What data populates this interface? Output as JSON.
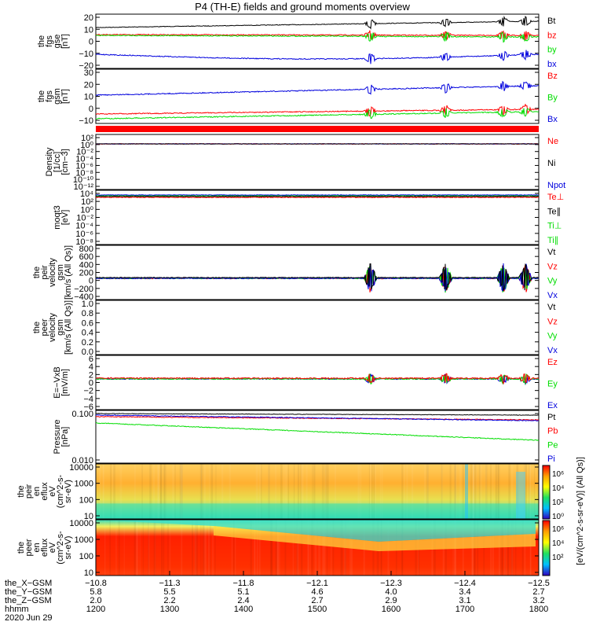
{
  "title": "P4 (TH-E) fields and ground moments overview",
  "colors": {
    "black": "#000000",
    "red": "#ff0000",
    "green": "#00dd00",
    "blue": "#0000dd"
  },
  "panels": [
    {
      "id": "fgs-gse",
      "ylabel": [
        "the",
        "fgs",
        "gse",
        "[nT]"
      ],
      "ticks": [
        "20",
        "10",
        "0",
        "−10",
        "−20"
      ],
      "legend": [
        {
          "text": "Bt",
          "color": "black"
        },
        {
          "text": "bz",
          "color": "red"
        },
        {
          "text": "by",
          "color": "green"
        },
        {
          "text": "bx",
          "color": "blue"
        }
      ]
    },
    {
      "id": "fgs-gsm",
      "ylabel": [
        "the",
        "fgs",
        "gsm",
        "[nT]"
      ],
      "ticks": [
        "30",
        "20",
        "10",
        "0",
        "−10"
      ],
      "legend": [
        {
          "text": "Bz",
          "color": "red"
        },
        {
          "text": "By",
          "color": "green"
        },
        {
          "text": "Bx",
          "color": "blue"
        }
      ]
    },
    {
      "id": "density",
      "ylabel": [
        "Density",
        "[1/cc]",
        "[cm−3]"
      ],
      "ticks": [
        "10²",
        "10⁰",
        "10⁻²",
        "10⁻⁴",
        "10⁻⁶",
        "10⁻⁸",
        "10⁻¹⁰",
        "10⁻¹²"
      ],
      "legend": [
        {
          "text": "Ne",
          "color": "red"
        },
        {
          "text": "Ni",
          "color": "black"
        },
        {
          "text": "Npot",
          "color": "blue"
        }
      ]
    },
    {
      "id": "temp",
      "ylabel": [
        "moqt3",
        "[eV]"
      ],
      "ticks": [
        "10⁴",
        "10²",
        "10⁰",
        "10⁻²",
        "10⁻⁴",
        "10⁻⁶",
        "10⁻⁸"
      ],
      "legend": [
        {
          "text": "Te⊥",
          "color": "red"
        },
        {
          "text": "Te∥",
          "color": "black"
        },
        {
          "text": "Ti⊥",
          "color": "green"
        },
        {
          "text": "Ti∥",
          "color": "green"
        }
      ]
    },
    {
      "id": "peir-vel",
      "ylabel": [
        "the",
        "peir",
        "velocity",
        "gsm",
        "[km/s (All Qs)]"
      ],
      "ticks": [
        "800",
        "600",
        "400",
        "200",
        "0",
        "−200",
        "−400"
      ],
      "legend": [
        {
          "text": "Vt",
          "color": "black"
        },
        {
          "text": "Vz",
          "color": "red"
        },
        {
          "text": "Vy",
          "color": "green"
        },
        {
          "text": "Vx",
          "color": "blue"
        }
      ]
    },
    {
      "id": "peer-vel",
      "ylabel": [
        "the",
        "peer",
        "velocity",
        "gsm",
        "[km/s (All Qs)]"
      ],
      "ticks": [
        "1.0",
        "0.8",
        "0.6",
        "0.4",
        "0.2",
        "0.0"
      ],
      "legend": [
        {
          "text": "Vt",
          "color": "black"
        },
        {
          "text": "Vz",
          "color": "red"
        },
        {
          "text": "Vy",
          "color": "green"
        },
        {
          "text": "Vx",
          "color": "blue"
        }
      ]
    },
    {
      "id": "efield",
      "ylabel": [
        "E=−VxB",
        "[mV/m]"
      ],
      "ticks": [
        "6",
        "4",
        "2",
        "0",
        "−2",
        "−4",
        "−6"
      ],
      "legend": [
        {
          "text": "Ez",
          "color": "red"
        },
        {
          "text": "Ey",
          "color": "green"
        },
        {
          "text": "Ex",
          "color": "blue"
        }
      ]
    },
    {
      "id": "pressure",
      "ylabel": [
        "Pressure",
        "[nPa]"
      ],
      "ticks": [
        "0.100",
        "0.010"
      ],
      "legend": [
        {
          "text": "Pt",
          "color": "black"
        },
        {
          "text": "Pb",
          "color": "red"
        },
        {
          "text": "Pe",
          "color": "green"
        },
        {
          "text": "Pi",
          "color": "blue"
        }
      ]
    },
    {
      "id": "peir-en",
      "ylabel": [
        "the",
        "peir",
        "en",
        "eflux",
        "eV",
        "(cm^2-s-",
        "sr-eV)"
      ],
      "ticks": [
        "10000",
        "1000",
        "100",
        "10"
      ],
      "legend": []
    },
    {
      "id": "peer-en",
      "ylabel": [
        "the",
        "peer",
        "en",
        "eflux",
        "eV",
        "(cm^2-s-",
        "sr-eV)"
      ],
      "ticks": [
        "10000",
        "1000",
        "100",
        "10"
      ],
      "legend": []
    }
  ],
  "colorbar": {
    "ticks": [
      "10⁶",
      "10⁴",
      "10²",
      "10⁰"
    ],
    "ticks2": [
      "10⁶",
      "10⁴",
      "10²"
    ],
    "label": "[eV/(cm^2-s-sr-eV)] (All Qs)]"
  },
  "xaxis": {
    "row_labels": [
      "the_X−GSM",
      "the_Y−GSM",
      "the_Z−GSM",
      "hhmm",
      "2020 Jun 29"
    ],
    "columns": [
      {
        "top": "−10.8",
        "x": "5.8",
        "y": "2.0",
        "z": "1200"
      },
      {
        "top": "−11.3",
        "x": "5.5",
        "y": "2.2",
        "z": "1300"
      },
      {
        "top": "−11.8",
        "x": "5.1",
        "y": "2.4",
        "z": "1400"
      },
      {
        "top": "−12.1",
        "x": "4.6",
        "y": "2.7",
        "z": "1500"
      },
      {
        "top": "−12.3",
        "x": "4.0",
        "y": "2.9",
        "z": "1600"
      },
      {
        "top": "−12.4",
        "x": "3.4",
        "y": "3.1",
        "z": "1700"
      },
      {
        "top": "−12.5",
        "x": "2.7",
        "y": "3.2",
        "z": "1800"
      }
    ]
  },
  "chart_data": {
    "type": "line",
    "title": "P4 (TH-E) fields and ground moments overview",
    "x_hhmm": [
      1200,
      1300,
      1400,
      1500,
      1600,
      1700,
      1800
    ],
    "series": [
      {
        "panel": "fgs-gse",
        "name": "Bt",
        "values": [
          11,
          13,
          15,
          15,
          15,
          15,
          17
        ]
      },
      {
        "panel": "fgs-gse",
        "name": "bz",
        "values": [
          4,
          4,
          5,
          4,
          4,
          4,
          5
        ]
      },
      {
        "panel": "fgs-gse",
        "name": "by",
        "values": [
          3,
          1,
          0,
          0,
          0,
          2,
          2
        ]
      },
      {
        "panel": "fgs-gse",
        "name": "bx",
        "values": [
          -9,
          -12,
          -14,
          -14,
          -13,
          -12,
          -11
        ]
      },
      {
        "panel": "fgs-gsm",
        "name": "Bz",
        "values": [
          -2,
          -1,
          0,
          0,
          0,
          0,
          2
        ]
      },
      {
        "panel": "fgs-gsm",
        "name": "By",
        "values": [
          11,
          12,
          12,
          12,
          12,
          13,
          16
        ]
      },
      {
        "panel": "fgs-gsm",
        "name": "Bx",
        "values": [
          -6,
          -5,
          -4,
          -3,
          -2,
          -2,
          -1
        ]
      },
      {
        "panel": "peir-vel",
        "name": "Vt",
        "values": [
          20,
          20,
          20,
          20,
          40,
          40,
          80
        ]
      },
      {
        "panel": "efield",
        "name": "Ez",
        "values": [
          0.2,
          0.2,
          0.2,
          0.2,
          0.1,
          0.2,
          0.5
        ]
      },
      {
        "panel": "pressure",
        "name": "Pt",
        "values": [
          0.17,
          0.17,
          0.17,
          0.17,
          0.16,
          0.15,
          0.15
        ]
      },
      {
        "panel": "pressure",
        "name": "Pb",
        "values": [
          0.11,
          0.11,
          0.11,
          0.11,
          0.11,
          0.1,
          0.11
        ]
      },
      {
        "panel": "pressure",
        "name": "Pe",
        "values": [
          0.07,
          0.05,
          0.04,
          0.03,
          0.025,
          0.025,
          0.02
        ]
      },
      {
        "panel": "pressure",
        "name": "Pi",
        "values": [
          0.12,
          0.1,
          0.09,
          0.09,
          0.1,
          0.1,
          0.1
        ]
      }
    ]
  }
}
